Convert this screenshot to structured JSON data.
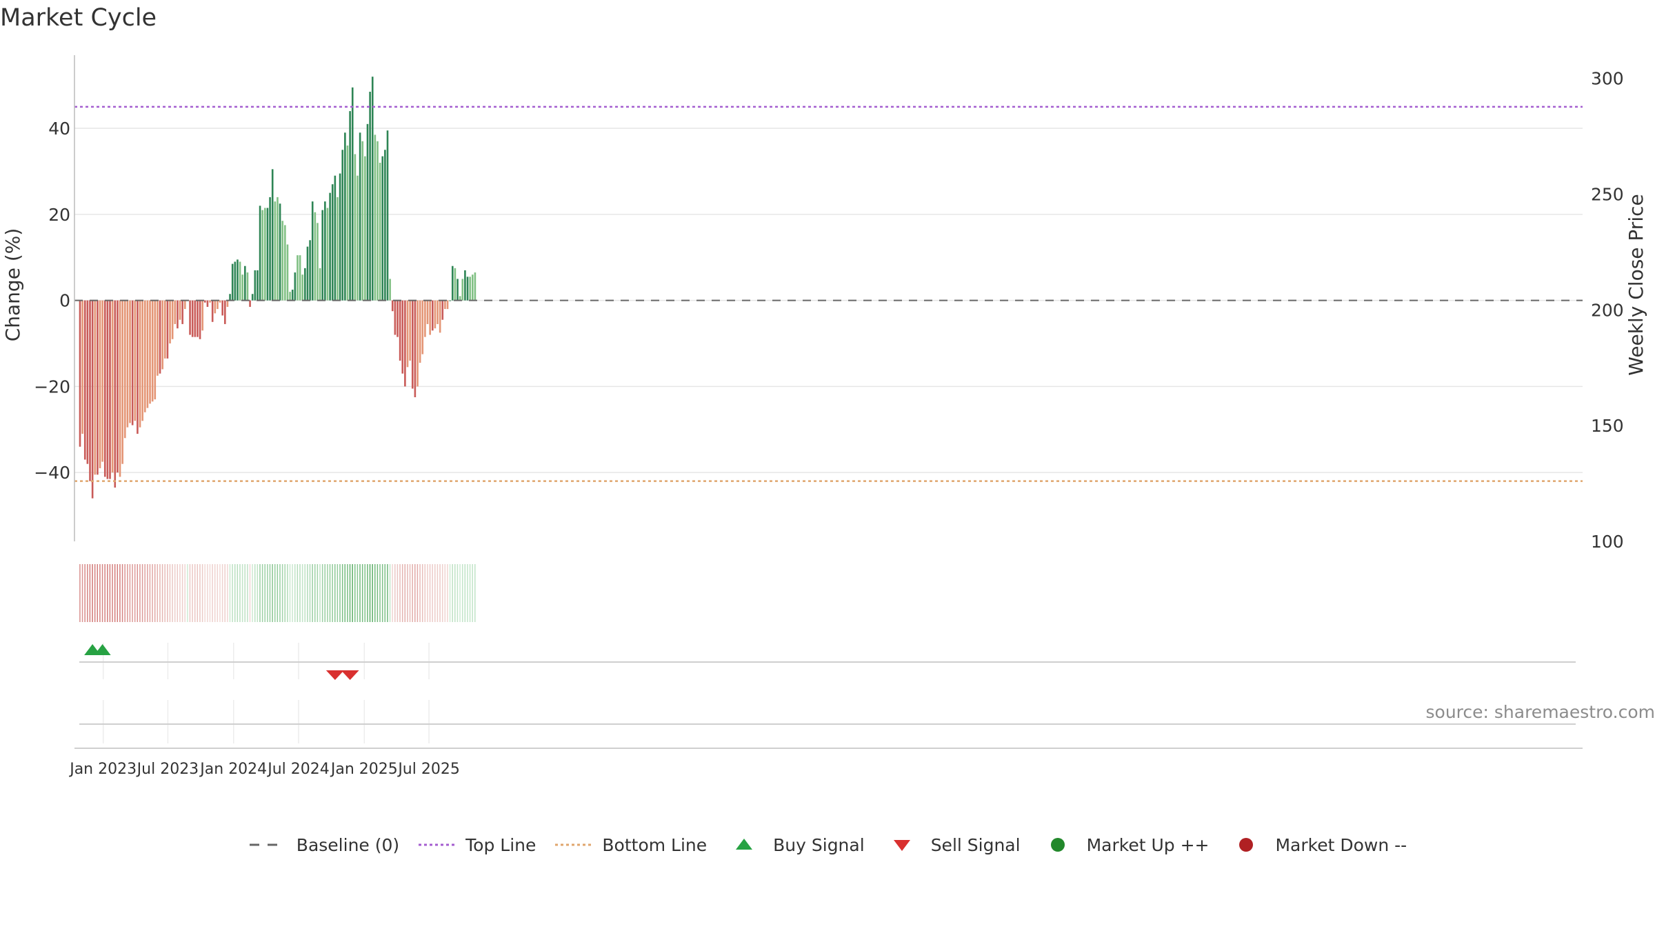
{
  "title": "Market Cycle",
  "source": "source: sharemaestro.com",
  "colors": {
    "strong_down": "#c95b58",
    "weak_down": "#e49575",
    "strong_up": "#2e8555",
    "weak_up": "#81c084",
    "top_line": "#a45ed0",
    "bottom_line": "#e0a66e",
    "baseline": "#666666",
    "buy": "#27a243",
    "sell": "#d9302f",
    "market_up": "#22882b",
    "market_down": "#b02023"
  },
  "legend": [
    {
      "label": "Baseline (0)",
      "icon": "dash-line-icon"
    },
    {
      "label": "Top Line",
      "icon": "dotted-line-purple-icon"
    },
    {
      "label": "Bottom Line",
      "icon": "dotted-line-orange-icon"
    },
    {
      "label": "Buy Signal",
      "icon": "triangle-up-green-icon"
    },
    {
      "label": "Sell Signal",
      "icon": "triangle-down-red-icon"
    },
    {
      "label": "Market Up ++",
      "icon": "circle-green-icon"
    },
    {
      "label": "Market Down --",
      "icon": "circle-red-icon"
    }
  ],
  "chart_data": {
    "type": "bar",
    "start_date": "2022-10-28",
    "period": "weekly",
    "y_left": {
      "label": "Change (%)",
      "range": [
        -56,
        57
      ],
      "ticks": [
        -40,
        -20,
        0,
        20,
        40
      ]
    },
    "y_right": {
      "label": "Weekly Close Price",
      "range": [
        100,
        310
      ],
      "ticks": [
        100,
        150,
        200,
        250,
        300
      ]
    },
    "x_ticks": [
      {
        "label": "Jan 2023",
        "date": "2023-01-01"
      },
      {
        "label": "Jul 2023",
        "date": "2023-07-01"
      },
      {
        "label": "Jan 2024",
        "date": "2024-01-01"
      },
      {
        "label": "Jul 2024",
        "date": "2024-07-01"
      },
      {
        "label": "Jan 2025",
        "date": "2025-01-01"
      },
      {
        "label": "Jul 2025",
        "date": "2025-07-01"
      }
    ],
    "top_line": 45,
    "bottom_line": -42,
    "values": [
      -34,
      -31,
      -37,
      -38,
      -42,
      -46,
      -40.5,
      -40.5,
      -39,
      -37.5,
      -41,
      -41.5,
      -41.5,
      -40,
      -43.5,
      -40,
      -41,
      -38,
      -32,
      -29.5,
      -28.5,
      -29,
      -28,
      -31,
      -29.5,
      -28,
      -26,
      -25,
      -24,
      -23.5,
      -23,
      -17.5,
      -17,
      -16,
      -13.5,
      -13.5,
      -10,
      -9,
      -5.5,
      -6.5,
      -4.5,
      -5.5,
      -2,
      0,
      -8,
      -8.5,
      -8.5,
      -8.5,
      -9,
      -7,
      -0.5,
      -1.5,
      -0.5,
      -5,
      -3,
      -2,
      -0.5,
      -3.5,
      -5.5,
      -1.5,
      1.5,
      8.5,
      9,
      9.5,
      9,
      6,
      8,
      6.5,
      -1.5,
      1.5,
      7,
      7,
      22,
      21,
      21.5,
      21.5,
      24,
      30.5,
      23,
      24,
      22.5,
      18.5,
      17.5,
      13,
      2,
      2.5,
      6.5,
      10.5,
      10.5,
      6,
      7.5,
      12.5,
      14,
      23,
      20.5,
      18,
      7.5,
      21,
      23,
      21.5,
      25,
      27,
      29,
      24,
      29.5,
      35,
      39,
      36,
      44,
      49.5,
      34,
      29,
      39,
      37,
      33.5,
      41,
      48.5,
      52,
      38.5,
      37,
      32,
      33.5,
      35,
      39.5,
      5,
      -2.5,
      -8,
      -8.5,
      -14,
      -17,
      -20,
      -15.5,
      -14,
      -20.5,
      -22.5,
      -20,
      -14.5,
      -12.5,
      -8.5,
      -5.5,
      -8,
      -7,
      -6.5,
      -5.5,
      -7.5,
      -4.5,
      -2,
      -2,
      0,
      8,
      7.5,
      5,
      1,
      5,
      7,
      5.5,
      5.5,
      6,
      6.5
    ],
    "colors": [
      "s",
      "w",
      "s",
      "s",
      "s",
      "s",
      "w",
      "s",
      "w",
      "w",
      "s",
      "s",
      "s",
      "w",
      "s",
      "s",
      "w",
      "w",
      "w",
      "w",
      "w",
      "s",
      "w",
      "s",
      "w",
      "w",
      "w",
      "w",
      "w",
      "w",
      "w",
      "w",
      "s",
      "w",
      "w",
      "s",
      "w",
      "w",
      "w",
      "s",
      "w",
      "s",
      "w",
      "w",
      "s",
      "s",
      "s",
      "s",
      "s",
      "w",
      "s",
      "s",
      "w",
      "s",
      "w",
      "w",
      "w",
      "s",
      "s",
      "w",
      "s",
      "s",
      "s",
      "s",
      "w",
      "w",
      "s",
      "w",
      "s",
      "s",
      "s",
      "s",
      "s",
      "w",
      "w",
      "s",
      "s",
      "s",
      "w",
      "w",
      "s",
      "w",
      "w",
      "w",
      "w",
      "s",
      "s",
      "w",
      "w",
      "w",
      "s",
      "s",
      "s",
      "s",
      "w",
      "w",
      "w",
      "s",
      "s",
      "w",
      "s",
      "s",
      "s",
      "w",
      "s",
      "s",
      "s",
      "w",
      "s",
      "s",
      "w",
      "w",
      "s",
      "w",
      "w",
      "s",
      "s",
      "s",
      "w",
      "w",
      "w",
      "s",
      "s",
      "s",
      "w",
      "s",
      "s",
      "s",
      "s",
      "s",
      "s",
      "w",
      "w",
      "s",
      "s",
      "w",
      "w",
      "w",
      "w",
      "w",
      "w",
      "s",
      "w",
      "w",
      "w",
      "s",
      "w",
      "w",
      "s",
      "s",
      "w",
      "s",
      "w",
      "w",
      "s",
      "s",
      "w",
      "w",
      "w",
      "s"
    ],
    "buy_signals": [
      "2022-12-02",
      "2022-12-30"
    ],
    "sell_signals": [
      "2024-10-11",
      "2024-11-22"
    ]
  }
}
